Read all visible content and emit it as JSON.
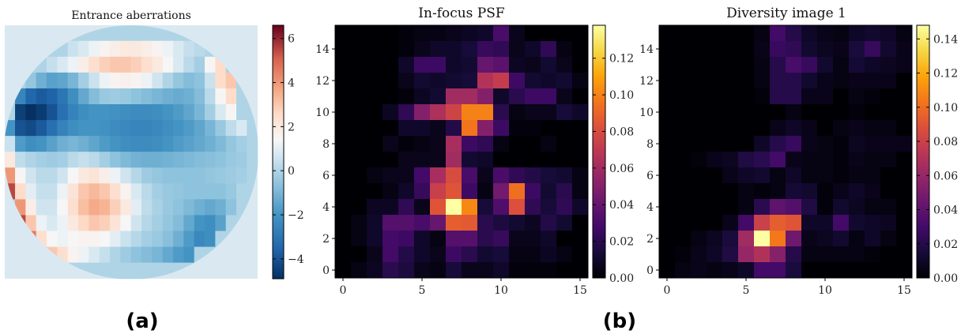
{
  "panel_labels": {
    "a": "(a)",
    "b": "(b)"
  },
  "chart_data": [
    {
      "type": "heatmap",
      "title": "Entrance aberrations",
      "description_shape": "circular pupil",
      "colormap": "RdBu_r",
      "colorbar": {
        "min": -4.9,
        "max": 6.6,
        "ticks": [
          6,
          4,
          2,
          0,
          -2,
          -4
        ],
        "tick_labels": [
          "6",
          "4",
          "2",
          "0",
          "−2",
          "−4"
        ]
      },
      "grid": [
        [
          0,
          0,
          0,
          0,
          0,
          0,
          0,
          0,
          0,
          0,
          0,
          0,
          0,
          0,
          0,
          0,
          0,
          0,
          0,
          0,
          0,
          0,
          0,
          0
        ],
        [
          0,
          0,
          0,
          0,
          0,
          0,
          0.5,
          0.8,
          1.2,
          1.6,
          1.8,
          2.0,
          2.0,
          1.8,
          1.6,
          1.2,
          0.8,
          0.4,
          0.2,
          0,
          0,
          0,
          0,
          0
        ],
        [
          0,
          0,
          0,
          0,
          0.4,
          0.8,
          1.2,
          1.8,
          2.4,
          2.8,
          3.0,
          3.0,
          2.8,
          2.4,
          2.0,
          1.4,
          0.8,
          0.2,
          -0.2,
          1.5,
          2.5,
          0,
          0,
          0
        ],
        [
          0,
          0,
          -0.5,
          -1.2,
          -1.6,
          -1.5,
          -1.0,
          -0.2,
          0.5,
          1.2,
          1.6,
          1.7,
          1.6,
          1.2,
          0.6,
          0,
          -0.5,
          -0.8,
          -0.6,
          0.5,
          2.5,
          3.0,
          0,
          0
        ],
        [
          0,
          -2.5,
          -3.5,
          -3.8,
          -3.6,
          -3.0,
          -2.2,
          -1.4,
          -0.8,
          -0.4,
          -0.3,
          -0.4,
          -0.6,
          -0.8,
          -1.0,
          -1.2,
          -1.3,
          -1.2,
          -0.8,
          0.2,
          1.5,
          2.5,
          0,
          0
        ],
        [
          0,
          -4.5,
          -4.9,
          -4.6,
          -4.0,
          -3.2,
          -2.6,
          -2.2,
          -2.0,
          -2.0,
          -2.1,
          -2.2,
          -2.3,
          -2.3,
          -2.2,
          -2.0,
          -1.8,
          -1.5,
          -1.0,
          -0.2,
          0.8,
          1.5,
          0,
          0
        ],
        [
          -2.0,
          -4.0,
          -4.2,
          -3.8,
          -3.2,
          -2.6,
          -2.2,
          -2.0,
          -2.0,
          -2.1,
          -2.3,
          -2.4,
          -2.5,
          -2.5,
          -2.4,
          -2.2,
          -2.0,
          -1.8,
          -1.5,
          -1.0,
          -0.4,
          0.3,
          0.8,
          0
        ],
        [
          0.5,
          -1.8,
          -2.2,
          -2.0,
          -1.6,
          -1.2,
          -1.0,
          -1.2,
          -1.5,
          -1.8,
          -2.0,
          -2.2,
          -2.3,
          -2.3,
          -2.2,
          -2.0,
          -1.8,
          -1.6,
          -1.4,
          -1.2,
          -0.9,
          -0.5,
          -0.2,
          0
        ],
        [
          2.0,
          0.3,
          0.0,
          -0.2,
          -0.3,
          -0.2,
          0.2,
          0.4,
          0.2,
          -0.2,
          -0.6,
          -0.9,
          -1.1,
          -1.2,
          -1.2,
          -1.1,
          -1.0,
          -0.9,
          -0.8,
          -0.7,
          -0.6,
          -0.4,
          -0.3,
          0
        ],
        [
          4.0,
          1.5,
          0.6,
          0.2,
          0.2,
          0.6,
          1.4,
          2.0,
          2.2,
          1.8,
          1.2,
          0.6,
          0.1,
          -0.3,
          -0.5,
          -0.6,
          -0.6,
          -0.6,
          -0.6,
          -0.5,
          -0.4,
          -0.3,
          -0.2,
          0
        ],
        [
          5.5,
          2.5,
          1.0,
          0.4,
          0.4,
          1.2,
          2.2,
          3.0,
          3.3,
          3.0,
          2.4,
          1.6,
          0.8,
          0.2,
          -0.2,
          -0.4,
          -0.5,
          -0.6,
          -0.6,
          -0.6,
          -0.6,
          -0.4,
          0,
          0
        ],
        [
          0,
          4.0,
          1.8,
          0.6,
          0.6,
          1.4,
          2.4,
          3.2,
          3.6,
          3.4,
          2.8,
          2.0,
          1.0,
          0.3,
          -0.1,
          -0.4,
          -0.6,
          -0.9,
          -1.2,
          -1.4,
          -1.2,
          -0.6,
          0,
          0
        ],
        [
          0,
          5.5,
          3.0,
          1.2,
          0.8,
          1.2,
          2.0,
          2.6,
          3.0,
          2.8,
          2.2,
          1.4,
          0.6,
          0.1,
          -0.2,
          -0.5,
          -0.8,
          -1.4,
          -2.0,
          -2.2,
          -1.6,
          0,
          0,
          0
        ],
        [
          0,
          0,
          4.5,
          2.4,
          1.4,
          1.2,
          1.4,
          1.6,
          1.6,
          1.4,
          1.0,
          0.5,
          0.1,
          -0.2,
          -0.4,
          -0.7,
          -1.2,
          -1.8,
          -2.4,
          -2.2,
          0,
          0,
          0,
          0
        ],
        [
          0,
          0,
          0,
          0,
          3.0,
          2.4,
          1.6,
          1.2,
          0.8,
          0.4,
          0.0,
          -0.3,
          -0.6,
          -0.8,
          -1.0,
          -1.4,
          -1.8,
          -2.0,
          0,
          0,
          0,
          0,
          0,
          0
        ],
        [
          0,
          0,
          0,
          0,
          0,
          0,
          0,
          0,
          0,
          0,
          0,
          0,
          0,
          0,
          0,
          0,
          0,
          0,
          0,
          0,
          0,
          0,
          0,
          0
        ]
      ]
    },
    {
      "type": "heatmap",
      "title": "In-focus PSF",
      "colormap": "inferno",
      "xlim": [
        -0.5,
        15.5
      ],
      "ylim": [
        -0.5,
        15.5
      ],
      "xticks": [
        0,
        5,
        10,
        15
      ],
      "yticks": [
        0,
        2,
        4,
        6,
        8,
        10,
        12,
        14
      ],
      "colorbar": {
        "min": 0.0,
        "max": 0.138,
        "ticks": [
          0.0,
          0.02,
          0.04,
          0.06,
          0.08,
          0.1,
          0.12
        ],
        "tick_labels": [
          "0.00",
          "0.02",
          "0.04",
          "0.06",
          "0.08",
          "0.10",
          "0.12"
        ]
      },
      "rows_top_to_bottom_y15_to_y0": [
        [
          0.0,
          0.0,
          0.0,
          0.0,
          0.002,
          0.004,
          0.004,
          0.006,
          0.008,
          0.01,
          0.03,
          0.006,
          0.0,
          0.0,
          0.0,
          0.0
        ],
        [
          0.0,
          0.0,
          0.0,
          0.0,
          0.002,
          0.006,
          0.01,
          0.01,
          0.014,
          0.024,
          0.022,
          0.006,
          0.01,
          0.022,
          0.004,
          0.0
        ],
        [
          0.0,
          0.0,
          0.0,
          0.0,
          0.01,
          0.026,
          0.026,
          0.01,
          0.012,
          0.04,
          0.036,
          0.008,
          0.006,
          0.012,
          0.006,
          0.0
        ],
        [
          0.0,
          0.0,
          0.0,
          0.0,
          0.006,
          0.012,
          0.01,
          0.012,
          0.014,
          0.066,
          0.072,
          0.026,
          0.012,
          0.01,
          0.012,
          0.004
        ],
        [
          0.0,
          0.0,
          0.0,
          0.0,
          0.002,
          0.008,
          0.012,
          0.06,
          0.06,
          0.05,
          0.01,
          0.02,
          0.026,
          0.026,
          0.006,
          0.0
        ],
        [
          0.0,
          0.0,
          0.0,
          0.008,
          0.022,
          0.05,
          0.064,
          0.076,
          0.1,
          0.1,
          0.02,
          0.004,
          0.006,
          0.006,
          0.014,
          0.01
        ],
        [
          0.0,
          0.0,
          0.0,
          0.0,
          0.01,
          0.01,
          0.006,
          0.018,
          0.096,
          0.05,
          0.026,
          0.002,
          0.002,
          0.0,
          0.0,
          0.0
        ],
        [
          0.0,
          0.0,
          0.0,
          0.006,
          0.002,
          0.004,
          0.006,
          0.062,
          0.026,
          0.022,
          0.004,
          0.0,
          0.0,
          0.004,
          0.0,
          0.0
        ],
        [
          0.0,
          0.0,
          0.0,
          0.0,
          0.006,
          0.006,
          0.006,
          0.06,
          0.012,
          0.01,
          0.0,
          0.0,
          0.0,
          0.0,
          0.0,
          0.0
        ],
        [
          0.0,
          0.0,
          0.004,
          0.006,
          0.006,
          0.028,
          0.062,
          0.08,
          0.03,
          0.006,
          0.03,
          0.022,
          0.018,
          0.014,
          0.012,
          0.004
        ],
        [
          0.0,
          0.0,
          0.0,
          0.004,
          0.01,
          0.024,
          0.074,
          0.084,
          0.026,
          0.004,
          0.044,
          0.094,
          0.026,
          0.012,
          0.02,
          0.004
        ],
        [
          0.0,
          0.0,
          0.008,
          0.008,
          0.022,
          0.006,
          0.084,
          0.138,
          0.102,
          0.014,
          0.032,
          0.082,
          0.022,
          0.014,
          0.022,
          0.01
        ],
        [
          0.0,
          0.004,
          0.01,
          0.034,
          0.034,
          0.03,
          0.04,
          0.088,
          0.086,
          0.02,
          0.016,
          0.012,
          0.008,
          0.018,
          0.012,
          0.0
        ],
        [
          0.0,
          0.004,
          0.01,
          0.028,
          0.026,
          0.01,
          0.004,
          0.034,
          0.034,
          0.02,
          0.024,
          0.006,
          0.006,
          0.01,
          0.0,
          0.0
        ],
        [
          0.0,
          0.0,
          0.006,
          0.028,
          0.018,
          0.01,
          0.006,
          0.026,
          0.02,
          0.012,
          0.014,
          0.004,
          0.004,
          0.008,
          0.004,
          0.0
        ],
        [
          0.0,
          0.004,
          0.008,
          0.02,
          0.016,
          0.006,
          0.004,
          0.014,
          0.006,
          0.006,
          0.01,
          0.002,
          0.002,
          0.002,
          0.0,
          0.0
        ]
      ]
    },
    {
      "type": "heatmap",
      "title": "Diversity image 1",
      "colormap": "inferno",
      "xlim": [
        -0.5,
        15.5
      ],
      "ylim": [
        -0.5,
        15.5
      ],
      "xticks": [
        0,
        5,
        10,
        15
      ],
      "yticks": [
        0,
        2,
        4,
        6,
        8,
        10,
        12,
        14
      ],
      "colorbar": {
        "min": 0.0,
        "max": 0.148,
        "ticks": [
          0.0,
          0.02,
          0.04,
          0.06,
          0.08,
          0.1,
          0.12,
          0.14
        ],
        "tick_labels": [
          "0.00",
          "0.02",
          "0.04",
          "0.06",
          "0.08",
          "0.10",
          "0.12",
          "0.14"
        ]
      },
      "rows_top_to_bottom_y15_to_y0": [
        [
          0.0,
          0.0,
          0.0,
          0.0,
          0.0,
          0.0,
          0.004,
          0.03,
          0.02,
          0.01,
          0.006,
          0.004,
          0.01,
          0.012,
          0.01,
          0.004
        ],
        [
          0.0,
          0.0,
          0.0,
          0.0,
          0.0,
          0.0,
          0.006,
          0.026,
          0.024,
          0.012,
          0.008,
          0.006,
          0.016,
          0.026,
          0.012,
          0.006
        ],
        [
          0.0,
          0.0,
          0.0,
          0.0,
          0.0,
          0.0,
          0.004,
          0.02,
          0.032,
          0.026,
          0.012,
          0.004,
          0.014,
          0.01,
          0.008,
          0.006
        ],
        [
          0.0,
          0.0,
          0.0,
          0.0,
          0.0,
          0.0,
          0.004,
          0.02,
          0.02,
          0.012,
          0.006,
          0.004,
          0.006,
          0.006,
          0.006,
          0.0
        ],
        [
          0.0,
          0.0,
          0.0,
          0.0,
          0.0,
          0.0,
          0.002,
          0.02,
          0.02,
          0.006,
          0.006,
          0.0,
          0.004,
          0.002,
          0.0,
          0.0
        ],
        [
          0.0,
          0.0,
          0.0,
          0.0,
          0.0,
          0.0,
          0.0,
          0.0,
          0.004,
          0.0,
          0.0,
          0.0,
          0.002,
          0.0,
          0.0,
          0.0
        ],
        [
          0.0,
          0.0,
          0.0,
          0.0,
          0.0,
          0.0,
          0.0,
          0.006,
          0.01,
          0.006,
          0.0,
          0.004,
          0.006,
          0.004,
          0.004,
          0.0
        ],
        [
          0.0,
          0.0,
          0.0,
          0.0,
          0.0,
          0.0,
          0.01,
          0.02,
          0.026,
          0.006,
          0.004,
          0.002,
          0.008,
          0.006,
          0.006,
          0.006
        ],
        [
          0.0,
          0.0,
          0.002,
          0.006,
          0.008,
          0.018,
          0.022,
          0.03,
          0.006,
          0.004,
          0.004,
          0.002,
          0.006,
          0.004,
          0.004,
          0.0
        ],
        [
          0.0,
          0.0,
          0.0,
          0.0,
          0.006,
          0.01,
          0.012,
          0.004,
          0.01,
          0.004,
          0.004,
          0.002,
          0.004,
          0.004,
          0.0,
          0.0
        ],
        [
          0.0,
          0.0,
          0.0,
          0.0,
          0.0,
          0.004,
          0.002,
          0.004,
          0.014,
          0.012,
          0.002,
          0.006,
          0.01,
          0.006,
          0.0,
          0.0
        ],
        [
          0.0,
          0.0,
          0.0,
          0.0,
          0.0,
          0.004,
          0.022,
          0.04,
          0.036,
          0.018,
          0.002,
          0.012,
          0.008,
          0.004,
          0.004,
          0.0
        ],
        [
          0.0,
          0.0,
          0.0,
          0.0,
          0.006,
          0.03,
          0.08,
          0.094,
          0.09,
          0.01,
          0.01,
          0.03,
          0.012,
          0.01,
          0.008,
          0.0
        ],
        [
          0.0,
          0.0,
          0.004,
          0.008,
          0.016,
          0.064,
          0.148,
          0.104,
          0.046,
          0.006,
          0.008,
          0.012,
          0.004,
          0.01,
          0.004,
          0.0
        ],
        [
          0.0,
          0.002,
          0.006,
          0.01,
          0.018,
          0.06,
          0.07,
          0.054,
          0.02,
          0.004,
          0.004,
          0.004,
          0.004,
          0.002,
          0.0,
          0.0
        ],
        [
          0.0,
          0.004,
          0.006,
          0.004,
          0.006,
          0.01,
          0.03,
          0.03,
          0.016,
          0.0,
          0.0,
          0.0,
          0.0,
          0.0,
          0.0,
          0.0
        ]
      ]
    }
  ]
}
